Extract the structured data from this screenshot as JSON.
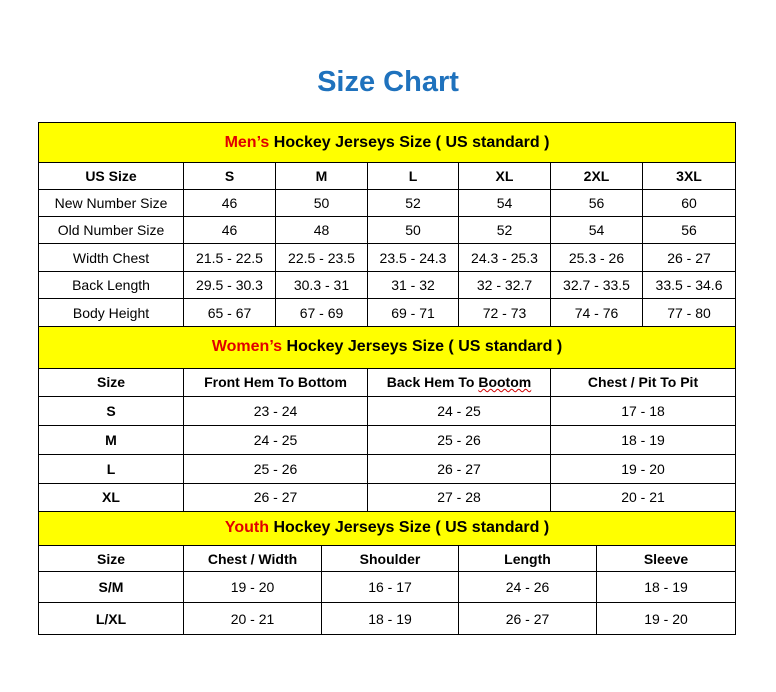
{
  "title": "Size Chart",
  "colors": {
    "title": "#1f72bd",
    "banner": "#ffff00",
    "accent": "#e00000"
  },
  "sections": [
    {
      "id": "men",
      "banner_accent": "Men’s",
      "banner_rest": " Hockey Jerseys Size ( US standard )",
      "headers": [
        "US Size",
        "S",
        "M",
        "L",
        "XL",
        "2XL",
        "3XL"
      ],
      "rows": [
        [
          "New Number Size",
          "46",
          "50",
          "52",
          "54",
          "56",
          "60"
        ],
        [
          "Old Number Size",
          "46",
          "48",
          "50",
          "52",
          "54",
          "56"
        ],
        [
          "Width Chest",
          "21.5 - 22.5",
          "22.5 - 23.5",
          "23.5 - 24.3",
          "24.3 - 25.3",
          "25.3 - 26",
          "26 - 27"
        ],
        [
          "Back Length",
          "29.5 - 30.3",
          "30.3 - 31",
          "31 - 32",
          "32 - 32.7",
          "32.7 - 33.5",
          "33.5 - 34.6"
        ],
        [
          "Body Height",
          "65 - 67",
          "67 - 69",
          "69 - 71",
          "72 - 73",
          "74 - 76",
          "77 - 80"
        ]
      ]
    },
    {
      "id": "women",
      "banner_accent": "Women’s",
      "banner_rest": " Hockey Jerseys Size ( US standard )",
      "headers": [
        "Size",
        "Front Hem To Bottom",
        "Back Hem To Bootom",
        "Chest / Pit To Pit"
      ],
      "rows": [
        [
          "S",
          "23 - 24",
          "24 - 25",
          "17 - 18"
        ],
        [
          "M",
          "24 - 25",
          "25 - 26",
          "18 - 19"
        ],
        [
          "L",
          "25 - 26",
          "26 - 27",
          "19 - 20"
        ],
        [
          "XL",
          "26 - 27",
          "27 - 28",
          "20 - 21"
        ]
      ]
    },
    {
      "id": "youth",
      "banner_accent": "Youth",
      "banner_rest": " Hockey Jerseys Size ( US standard )",
      "headers": [
        "Size",
        "Chest / Width",
        "Shoulder",
        "Length",
        "Sleeve"
      ],
      "rows": [
        [
          "S/M",
          "19 - 20",
          "16 - 17",
          "24 - 26",
          "18 - 19"
        ],
        [
          "L/XL",
          "20 - 21",
          "18 - 19",
          "26 - 27",
          "19 - 20"
        ]
      ]
    }
  ]
}
